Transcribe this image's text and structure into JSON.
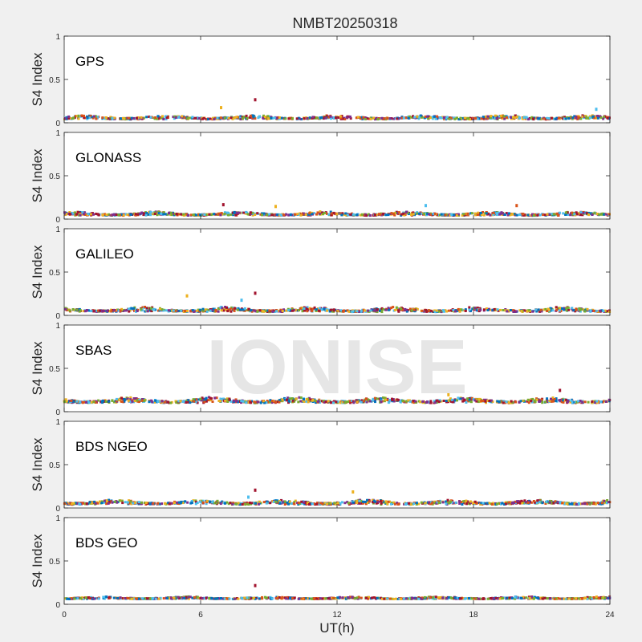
{
  "title": "NMBT20250318",
  "watermark": "IONISE",
  "xlabel": "UT(h)",
  "ylabel": "S4 Index",
  "colors": {
    "background": "#f0f0f0",
    "axes_bg": "#ffffff",
    "watermark": "#e6e6e6",
    "series": [
      "#0072bd",
      "#d95319",
      "#edb120",
      "#7e2f8e",
      "#77ac30",
      "#4dbeee",
      "#a2142f"
    ]
  },
  "chart_data": [
    {
      "type": "scatter",
      "label": "GPS",
      "xlim": [
        0,
        24
      ],
      "ylim": [
        0,
        1
      ],
      "xticks": [
        0,
        6,
        12,
        18,
        24
      ],
      "yticks": [
        0,
        0.5,
        1
      ],
      "ytick_labels": [
        "0",
        "0.5",
        "1"
      ],
      "baseline_s4": [
        0.04,
        0.09
      ],
      "outliers": [
        {
          "x": 8.4,
          "y": 0.27
        },
        {
          "x": 6.9,
          "y": 0.18
        },
        {
          "x": 23.4,
          "y": 0.16
        }
      ]
    },
    {
      "type": "scatter",
      "label": "GLONASS",
      "xlim": [
        0,
        24
      ],
      "ylim": [
        0,
        1
      ],
      "xticks": [
        0,
        6,
        12,
        18,
        24
      ],
      "yticks": [
        0,
        0.5,
        1
      ],
      "ytick_labels": [
        "0",
        "0.5",
        "1"
      ],
      "baseline_s4": [
        0.04,
        0.09
      ],
      "outliers": [
        {
          "x": 7.0,
          "y": 0.17
        },
        {
          "x": 9.3,
          "y": 0.15
        },
        {
          "x": 15.9,
          "y": 0.16
        },
        {
          "x": 19.9,
          "y": 0.16
        }
      ]
    },
    {
      "type": "scatter",
      "label": "GALILEO",
      "xlim": [
        0,
        24
      ],
      "ylim": [
        0,
        1
      ],
      "xticks": [
        0,
        6,
        12,
        18,
        24
      ],
      "yticks": [
        0,
        0.5,
        1
      ],
      "ytick_labels": [
        "0",
        "0.5",
        "1"
      ],
      "baseline_s4": [
        0.04,
        0.1
      ],
      "outliers": [
        {
          "x": 8.4,
          "y": 0.26
        },
        {
          "x": 5.4,
          "y": 0.23
        },
        {
          "x": 7.8,
          "y": 0.18
        }
      ]
    },
    {
      "type": "scatter",
      "label": "SBAS",
      "xlim": [
        0,
        24
      ],
      "ylim": [
        0,
        1
      ],
      "xticks": [
        0,
        6,
        12,
        18,
        24
      ],
      "yticks": [
        0,
        0.5,
        1
      ],
      "ytick_labels": [
        "0",
        "0.5",
        "1"
      ],
      "baseline_s4": [
        0.1,
        0.17
      ],
      "outliers": [
        {
          "x": 21.8,
          "y": 0.25
        },
        {
          "x": 16.9,
          "y": 0.2
        }
      ]
    },
    {
      "type": "scatter",
      "label": "BDS NGEO",
      "xlim": [
        0,
        24
      ],
      "ylim": [
        0,
        1
      ],
      "xticks": [
        0,
        6,
        12,
        18,
        24
      ],
      "yticks": [
        0,
        0.5,
        1
      ],
      "ytick_labels": [
        "0",
        "0.5",
        "1"
      ],
      "baseline_s4": [
        0.04,
        0.1
      ],
      "outliers": [
        {
          "x": 8.4,
          "y": 0.21
        },
        {
          "x": 12.7,
          "y": 0.19
        },
        {
          "x": 8.1,
          "y": 0.13
        }
      ]
    },
    {
      "type": "scatter",
      "label": "BDS GEO",
      "xlim": [
        0,
        24
      ],
      "ylim": [
        0,
        1
      ],
      "xticks": [
        0,
        6,
        12,
        18,
        24
      ],
      "yticks": [
        0,
        0.5,
        1
      ],
      "ytick_labels": [
        "0",
        "0.5",
        "1"
      ],
      "baseline_s4": [
        0.06,
        0.09
      ],
      "outliers": [
        {
          "x": 8.4,
          "y": 0.22
        }
      ]
    }
  ]
}
